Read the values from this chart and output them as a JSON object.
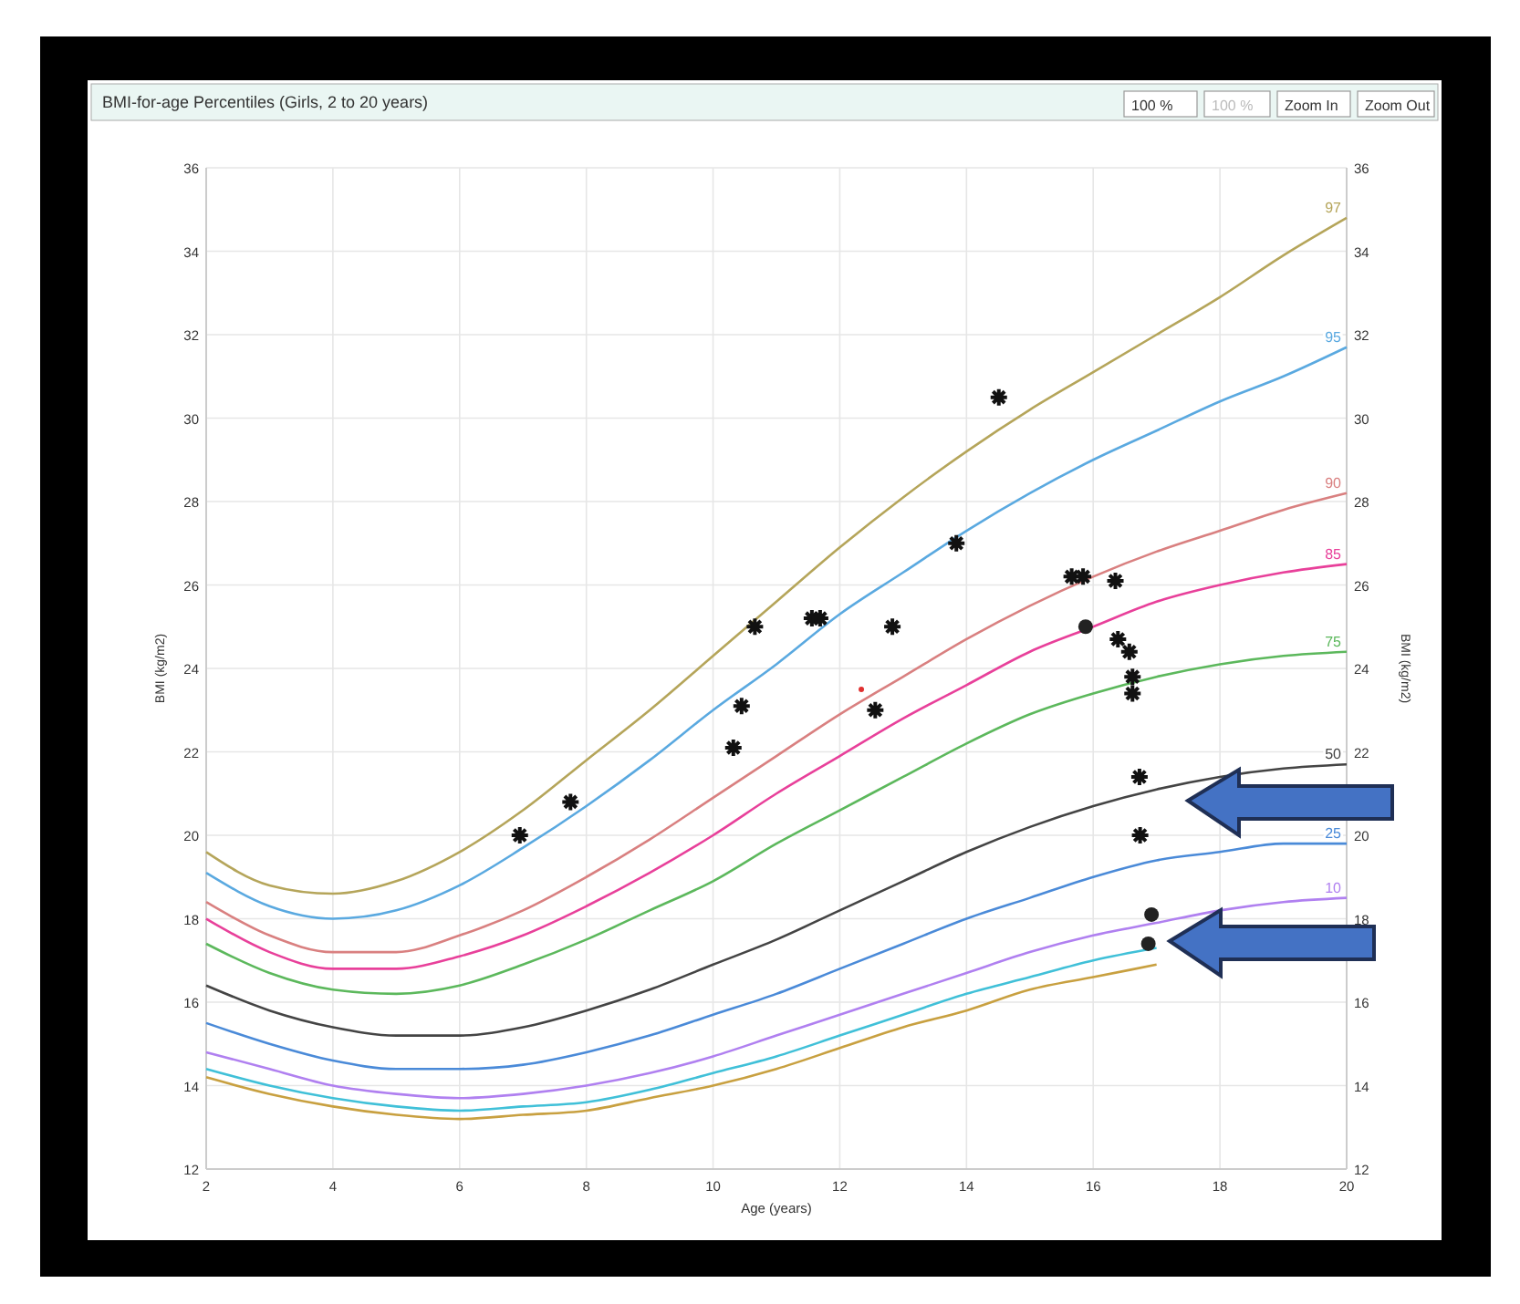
{
  "chart_data": {
    "type": "line",
    "title": "BMI-for-age Percentiles (Girls, 2 to 20 years)",
    "xlabel": "Age (years)",
    "ylabel": "BMI (kg/m2)",
    "y2label": "BMI (kg/m2)",
    "x": [
      2,
      3,
      4,
      5,
      6,
      7,
      8,
      9,
      10,
      11,
      12,
      13,
      14,
      15,
      16,
      17,
      18,
      19,
      20
    ],
    "xlim": [
      2,
      20
    ],
    "xticks": [
      2,
      4,
      6,
      8,
      10,
      12,
      14,
      16,
      18,
      20
    ],
    "ylim": [
      12,
      36
    ],
    "yticks": [
      12,
      14,
      16,
      18,
      20,
      22,
      24,
      26,
      28,
      30,
      32,
      34,
      36
    ],
    "y2lim": [
      12,
      36
    ],
    "y2ticks": [
      12,
      14,
      16,
      18,
      20,
      22,
      24,
      26,
      28,
      30,
      32,
      34,
      36
    ],
    "grid": true,
    "line_style": "solid",
    "series": [
      {
        "name": "97",
        "color": "#b5a55a",
        "values": [
          19.6,
          18.8,
          18.6,
          18.9,
          19.6,
          20.6,
          21.8,
          23.0,
          24.3,
          25.6,
          26.9,
          28.1,
          29.2,
          30.2,
          31.1,
          32.0,
          32.9,
          33.9,
          34.8
        ]
      },
      {
        "name": "95",
        "color": "#5aa9e0",
        "values": [
          19.1,
          18.3,
          18.0,
          18.2,
          18.8,
          19.7,
          20.7,
          21.8,
          23.0,
          24.1,
          25.3,
          26.3,
          27.3,
          28.2,
          29.0,
          29.7,
          30.4,
          31.0,
          31.7
        ]
      },
      {
        "name": "90",
        "color": "#d98080",
        "values": [
          18.4,
          17.6,
          17.2,
          17.2,
          17.6,
          18.2,
          19.0,
          19.9,
          20.9,
          21.9,
          22.9,
          23.8,
          24.7,
          25.5,
          26.2,
          26.8,
          27.3,
          27.8,
          28.2
        ]
      },
      {
        "name": "85",
        "color": "#e8409a",
        "values": [
          18.0,
          17.2,
          16.8,
          16.8,
          17.1,
          17.6,
          18.3,
          19.1,
          20.0,
          21.0,
          21.9,
          22.8,
          23.6,
          24.4,
          25.0,
          25.6,
          26.0,
          26.3,
          26.5
        ]
      },
      {
        "name": "75",
        "color": "#5cb85c",
        "values": [
          17.4,
          16.7,
          16.3,
          16.2,
          16.4,
          16.9,
          17.5,
          18.2,
          18.9,
          19.8,
          20.6,
          21.4,
          22.2,
          22.9,
          23.4,
          23.8,
          24.1,
          24.3,
          24.4
        ]
      },
      {
        "name": "50",
        "color": "#444444",
        "values": [
          16.4,
          15.8,
          15.4,
          15.2,
          15.2,
          15.4,
          15.8,
          16.3,
          16.9,
          17.5,
          18.2,
          18.9,
          19.6,
          20.2,
          20.7,
          21.1,
          21.4,
          21.6,
          21.7
        ]
      },
      {
        "name": "25",
        "color": "#4a8ad8",
        "values": [
          15.5,
          15.0,
          14.6,
          14.4,
          14.4,
          14.5,
          14.8,
          15.2,
          15.7,
          16.2,
          16.8,
          17.4,
          18.0,
          18.5,
          19.0,
          19.4,
          19.6,
          19.8,
          19.8
        ]
      },
      {
        "name": "10",
        "color": "#b080f0",
        "values": [
          14.8,
          14.4,
          14.0,
          13.8,
          13.7,
          13.8,
          14.0,
          14.3,
          14.7,
          15.2,
          15.7,
          16.2,
          16.7,
          17.2,
          17.6,
          17.9,
          18.2,
          18.4,
          18.5
        ]
      },
      {
        "color": "#40c0d8",
        "values": [
          14.4,
          14.0,
          13.7,
          13.5,
          13.4,
          13.5,
          13.6,
          13.9,
          14.3,
          14.7,
          15.2,
          15.7,
          16.2,
          16.6,
          17.0,
          17.3,
          null,
          null,
          null
        ]
      },
      {
        "color": "#c8a040",
        "values": [
          14.2,
          13.8,
          13.5,
          13.3,
          13.2,
          13.3,
          13.4,
          13.7,
          14.0,
          14.4,
          14.9,
          15.4,
          15.8,
          16.3,
          16.6,
          16.9,
          null,
          null,
          null
        ]
      },
      {
        "type": "scatter",
        "marker": "cross",
        "color": "#111111",
        "x": [
          6.95,
          7.75,
          10.32,
          10.45,
          10.66,
          11.56,
          11.69,
          12.56,
          12.83,
          13.84,
          14.51,
          15.66,
          15.84,
          16.35,
          16.39,
          16.57,
          16.62,
          16.62,
          16.73,
          16.74
        ],
        "values": [
          20.0,
          20.8,
          22.1,
          23.1,
          25.0,
          25.2,
          25.2,
          23.0,
          25.0,
          27.0,
          30.5,
          26.2,
          26.2,
          26.1,
          24.7,
          24.4,
          23.8,
          23.4,
          21.4,
          20.0
        ]
      },
      {
        "type": "scatter",
        "marker": "circle",
        "color": "#222222",
        "x": [
          15.88,
          16.92,
          16.87
        ],
        "values": [
          25.0,
          18.1,
          17.4
        ]
      },
      {
        "type": "scatter",
        "marker": "circle",
        "color": "#e03030",
        "x": [
          12.34
        ],
        "values": [
          23.5
        ]
      }
    ],
    "annotations": [
      "100 %",
      "100 %",
      "Zoom In",
      "Zoom Out"
    ]
  }
}
